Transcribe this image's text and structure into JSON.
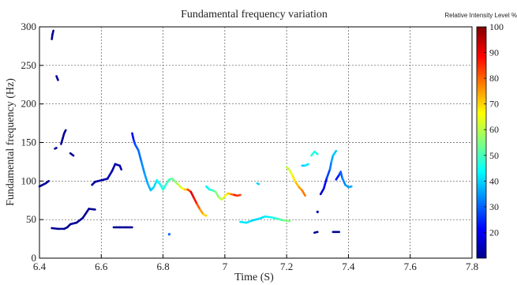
{
  "chart_data": {
    "type": "scatter",
    "title": "Fundamental frequency variation",
    "xlabel": "Time (S)",
    "ylabel": "Fundamental frequency (Hz)",
    "xlim": [
      6.4,
      7.8
    ],
    "ylim": [
      0,
      300
    ],
    "xticks": [
      "6.4",
      "6.6",
      "6.8",
      "7",
      "7.2",
      "7.4",
      "7.6",
      "7.8"
    ],
    "yticks": [
      "0",
      "50",
      "100",
      "150",
      "200",
      "250",
      "300"
    ],
    "grid": true,
    "colorbar": {
      "label": "Relative Intensity Level %",
      "range": [
        10,
        100
      ],
      "ticks": [
        "20",
        "30",
        "40",
        "50",
        "60",
        "70",
        "80",
        "90",
        "100"
      ],
      "colormap": "jet"
    },
    "series": [
      {
        "points": [
          [
            6.4,
            93,
            12
          ],
          [
            6.41,
            95,
            12
          ],
          [
            6.42,
            97,
            12
          ],
          [
            6.43,
            100,
            13
          ]
        ]
      },
      {
        "points": [
          [
            6.44,
            284,
            12
          ],
          [
            6.442,
            290,
            12
          ],
          [
            6.445,
            295,
            12
          ]
        ]
      },
      {
        "points": [
          [
            6.455,
            236,
            12
          ],
          [
            6.46,
            231,
            12
          ]
        ]
      },
      {
        "points": [
          [
            6.45,
            142,
            12
          ],
          [
            6.455,
            143,
            12
          ]
        ]
      },
      {
        "points": [
          [
            6.47,
            148,
            12
          ],
          [
            6.475,
            155,
            12
          ],
          [
            6.48,
            162,
            12
          ],
          [
            6.485,
            166,
            12
          ]
        ]
      },
      {
        "points": [
          [
            6.5,
            136,
            12
          ],
          [
            6.51,
            133,
            12
          ]
        ]
      },
      {
        "points": [
          [
            6.44,
            39,
            12
          ],
          [
            6.46,
            38,
            12
          ],
          [
            6.48,
            38,
            12
          ],
          [
            6.49,
            40,
            12
          ],
          [
            6.5,
            44,
            12
          ],
          [
            6.52,
            46,
            12
          ],
          [
            6.54,
            52,
            12
          ],
          [
            6.55,
            58,
            12
          ],
          [
            6.56,
            64,
            12
          ],
          [
            6.58,
            63,
            12
          ]
        ]
      },
      {
        "points": [
          [
            6.57,
            95,
            12
          ],
          [
            6.58,
            99,
            13
          ],
          [
            6.6,
            101,
            13
          ],
          [
            6.62,
            103,
            14
          ],
          [
            6.635,
            113,
            14
          ],
          [
            6.645,
            122,
            14
          ],
          [
            6.66,
            120,
            14
          ],
          [
            6.665,
            115,
            14
          ]
        ]
      },
      {
        "points": [
          [
            6.64,
            40,
            12
          ],
          [
            6.66,
            40,
            12
          ],
          [
            6.68,
            40,
            12
          ],
          [
            6.7,
            40,
            12
          ]
        ]
      },
      {
        "points": [
          [
            6.7,
            162,
            20
          ],
          [
            6.705,
            153,
            24
          ],
          [
            6.71,
            147,
            28
          ],
          [
            6.72,
            140,
            30
          ],
          [
            6.73,
            125,
            32
          ],
          [
            6.74,
            110,
            35
          ],
          [
            6.75,
            97,
            36
          ],
          [
            6.76,
            88,
            38
          ],
          [
            6.77,
            92,
            40
          ],
          [
            6.78,
            101,
            42
          ],
          [
            6.79,
            96,
            44
          ],
          [
            6.8,
            89,
            46
          ],
          [
            6.81,
            96,
            48
          ],
          [
            6.82,
            102,
            50
          ],
          [
            6.83,
            103,
            52
          ],
          [
            6.84,
            99,
            56
          ],
          [
            6.85,
            95,
            60
          ],
          [
            6.86,
            91,
            64
          ],
          [
            6.87,
            89,
            68
          ],
          [
            6.88,
            89,
            74
          ],
          [
            6.89,
            86,
            92
          ],
          [
            6.9,
            78,
            90
          ],
          [
            6.91,
            70,
            84
          ],
          [
            6.92,
            63,
            78
          ],
          [
            6.93,
            57,
            72
          ],
          [
            6.94,
            55,
            68
          ]
        ]
      },
      {
        "points": [
          [
            6.82,
            31,
            30
          ]
        ]
      },
      {
        "points": [
          [
            6.94,
            93,
            42
          ],
          [
            6.95,
            89,
            44
          ],
          [
            6.96,
            88,
            50
          ],
          [
            6.97,
            86,
            52
          ],
          [
            6.98,
            79,
            58
          ],
          [
            6.99,
            76,
            60
          ],
          [
            7.0,
            80,
            64
          ],
          [
            7.01,
            84,
            68
          ],
          [
            7.02,
            83,
            74
          ],
          [
            7.03,
            82,
            84
          ],
          [
            7.04,
            81,
            90
          ],
          [
            7.05,
            82,
            78
          ]
        ]
      },
      {
        "points": [
          [
            7.05,
            47,
            42
          ],
          [
            7.07,
            46,
            42
          ],
          [
            7.09,
            49,
            40
          ],
          [
            7.11,
            51,
            40
          ],
          [
            7.13,
            54,
            42
          ],
          [
            7.15,
            53,
            44
          ],
          [
            7.17,
            51,
            48
          ],
          [
            7.19,
            49,
            52
          ],
          [
            7.21,
            48,
            58
          ]
        ]
      },
      {
        "points": [
          [
            7.105,
            97,
            40
          ],
          [
            7.11,
            96,
            40
          ]
        ]
      },
      {
        "points": [
          [
            7.2,
            118,
            60
          ],
          [
            7.21,
            114,
            62
          ],
          [
            7.22,
            106,
            66
          ],
          [
            7.23,
            98,
            70
          ],
          [
            7.24,
            92,
            74
          ],
          [
            7.25,
            88,
            76
          ],
          [
            7.26,
            81,
            80
          ]
        ]
      },
      {
        "points": [
          [
            7.25,
            120,
            38
          ],
          [
            7.26,
            120,
            40
          ],
          [
            7.27,
            122,
            44
          ]
        ]
      },
      {
        "points": [
          [
            7.28,
            133,
            46
          ],
          [
            7.29,
            138,
            48
          ],
          [
            7.3,
            135,
            44
          ]
        ]
      },
      {
        "points": [
          [
            7.3,
            60,
            14
          ]
        ]
      },
      {
        "points": [
          [
            7.29,
            33,
            12
          ],
          [
            7.3,
            34,
            12
          ]
        ]
      },
      {
        "points": [
          [
            7.31,
            83,
            14
          ],
          [
            7.32,
            90,
            18
          ],
          [
            7.33,
            104,
            24
          ],
          [
            7.34,
            115,
            30
          ],
          [
            7.345,
            125,
            34
          ],
          [
            7.35,
            133,
            38
          ],
          [
            7.36,
            139,
            40
          ]
        ]
      },
      {
        "points": [
          [
            7.35,
            34,
            12
          ],
          [
            7.37,
            34,
            12
          ]
        ]
      },
      {
        "points": [
          [
            7.36,
            102,
            22
          ],
          [
            7.37,
            108,
            24
          ],
          [
            7.375,
            112,
            28
          ],
          [
            7.38,
            104,
            32
          ],
          [
            7.39,
            95,
            34
          ],
          [
            7.4,
            92,
            36
          ],
          [
            7.41,
            93,
            36
          ]
        ]
      }
    ]
  }
}
